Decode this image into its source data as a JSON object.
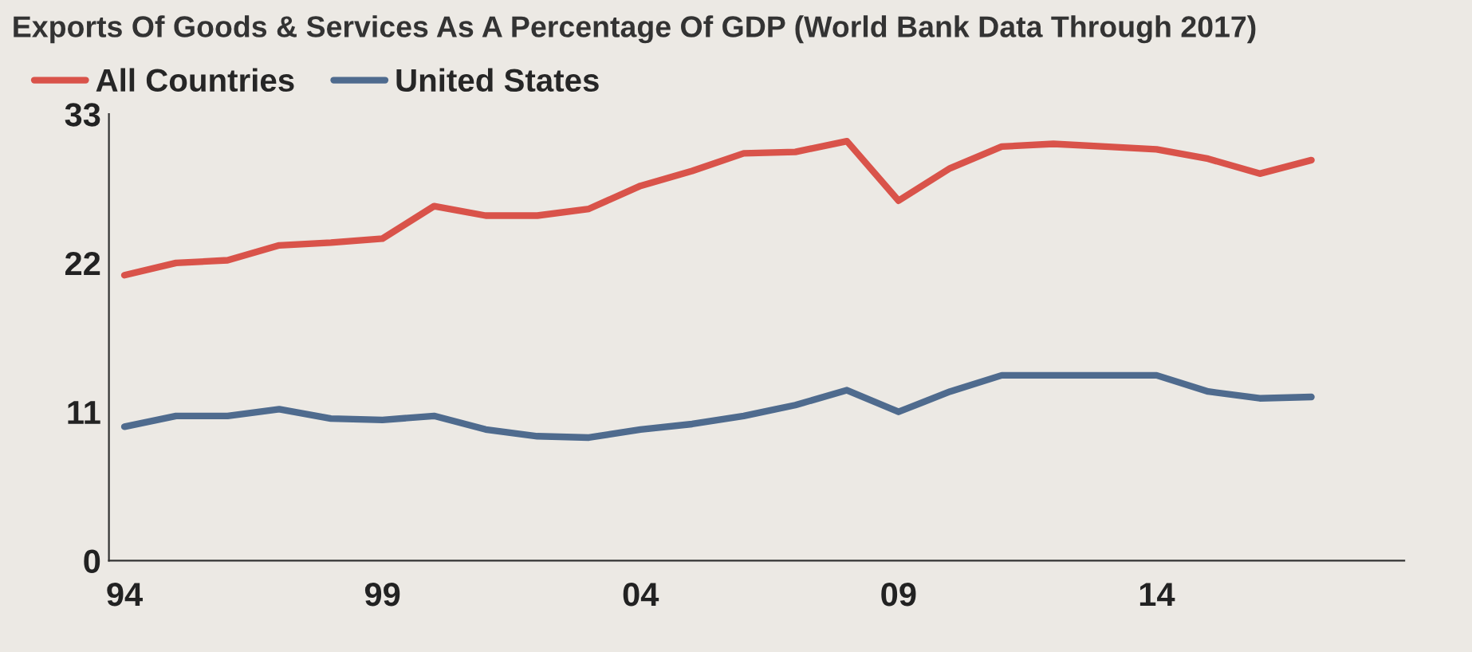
{
  "chart_data": {
    "type": "line",
    "title": "Exports Of Goods & Services As A Percentage Of GDP (World Bank Data Through 2017)",
    "x": [
      1994,
      1995,
      1996,
      1997,
      1998,
      1999,
      2000,
      2001,
      2002,
      2003,
      2004,
      2005,
      2006,
      2007,
      2008,
      2009,
      2010,
      2011,
      2012,
      2013,
      2014,
      2015,
      2016,
      2017
    ],
    "series": [
      {
        "name": "All Countries",
        "color": "#d9534a",
        "values": [
          21.1,
          22.0,
          22.2,
          23.3,
          23.5,
          23.8,
          26.2,
          25.5,
          25.5,
          26.0,
          27.7,
          28.8,
          30.1,
          30.2,
          31.0,
          26.6,
          29.0,
          30.6,
          30.8,
          30.6,
          30.4,
          29.7,
          28.6,
          29.6
        ]
      },
      {
        "name": "United States",
        "color": "#4f6b8e",
        "values": [
          9.9,
          10.7,
          10.7,
          11.2,
          10.5,
          10.4,
          10.7,
          9.7,
          9.2,
          9.1,
          9.7,
          10.1,
          10.7,
          11.5,
          12.6,
          11.0,
          12.5,
          13.7,
          13.7,
          13.7,
          13.7,
          12.5,
          12.0,
          12.1
        ]
      }
    ],
    "xlim": [
      1993.7,
      2018.8
    ],
    "xticks": [
      {
        "value": 1994,
        "label": "94"
      },
      {
        "value": 1999,
        "label": "99"
      },
      {
        "value": 2004,
        "label": "04"
      },
      {
        "value": 2009,
        "label": "09"
      },
      {
        "value": 2014,
        "label": "14"
      }
    ],
    "ylim": [
      0,
      33
    ],
    "yticks": [
      0,
      11,
      22,
      33
    ],
    "grid": false,
    "legend": "top left",
    "marker": "none",
    "line_style": "solid"
  }
}
